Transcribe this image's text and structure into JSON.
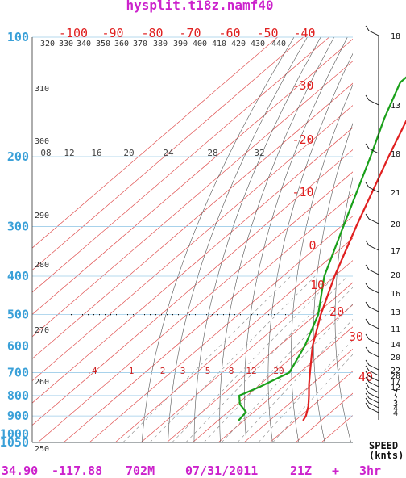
{
  "header": {
    "title": "hysplit.t18z.namf40"
  },
  "footer": {
    "lat": "34.90",
    "lon": "-117.88",
    "elev": "702M",
    "date": "07/31/2011",
    "hour": "21Z",
    "plus": "+",
    "fcst": "3hr"
  },
  "wind_panel": {
    "label_line1": "SPEED",
    "label_line2": "(knts)"
  },
  "colors": {
    "title": "#cc22cc",
    "pressure_axis": "#3aa0d8",
    "temperature": "#e02020",
    "dewpoint": "#1aa01a",
    "isotherm": "#e05050",
    "dry_adiabat": "#555555"
  },
  "chart_data": {
    "type": "line",
    "diagram": "skew-T log-P",
    "y_axis_ticks": [
      "100",
      "200",
      "300",
      "400",
      "500",
      "600",
      "700",
      "800",
      "900",
      "1000",
      "1050"
    ],
    "temperature_ticks": [
      "-100",
      "-90",
      "-80",
      "-70",
      "-60",
      "-50",
      "-40",
      "-30",
      "-20",
      "-10",
      "0",
      "10",
      "20",
      "30",
      "40"
    ],
    "theta_labels": [
      "320",
      "330",
      "340",
      "350",
      "360",
      "370",
      "380",
      "390",
      "400",
      "410",
      "420",
      "430",
      "440",
      "310",
      "300",
      "290",
      "280",
      "270",
      "260",
      "250"
    ],
    "upper_mixing_labels": [
      "08",
      "12",
      "16",
      "20",
      "24",
      "28",
      "32"
    ],
    "lower_mixing_labels": [
      ".4",
      "1",
      "2",
      "3",
      "5",
      "8",
      "12",
      "20"
    ],
    "series": [
      {
        "points": [
          {
            "p": 925,
            "t": 33
          },
          {
            "p": 900,
            "t": 32
          },
          {
            "p": 850,
            "t": 28.5
          },
          {
            "p": 800,
            "t": 24
          },
          {
            "p": 750,
            "t": 19
          },
          {
            "p": 700,
            "t": 14
          },
          {
            "p": 600,
            "t": 3
          },
          {
            "p": 500,
            "t": -8
          },
          {
            "p": 400,
            "t": -20
          },
          {
            "p": 300,
            "t": -34
          },
          {
            "p": 200,
            "t": -53
          },
          {
            "p": 160,
            "t": -63
          },
          {
            "p": 130,
            "t": -70
          },
          {
            "p": 100,
            "t": -75
          }
        ]
      },
      {
        "points": [
          {
            "p": 925,
            "t": 8
          },
          {
            "p": 880,
            "t": 7
          },
          {
            "p": 840,
            "t": 1
          },
          {
            "p": 800,
            "t": -3
          },
          {
            "p": 760,
            "t": 1
          },
          {
            "p": 700,
            "t": 6
          },
          {
            "p": 600,
            "t": 0
          },
          {
            "p": 500,
            "t": -9
          },
          {
            "p": 400,
            "t": -24
          },
          {
            "p": 300,
            "t": -39
          },
          {
            "p": 200,
            "t": -60
          },
          {
            "p": 160,
            "t": -72
          },
          {
            "p": 130,
            "t": -82
          },
          {
            "p": 100,
            "t": -82
          }
        ]
      }
    ],
    "wind_speeds": [
      "18",
      "13",
      "18",
      "21",
      "20",
      "17",
      "20",
      "16",
      "13",
      "11",
      "14",
      "20",
      "22",
      "20",
      "17",
      "12",
      "7",
      "7",
      "3",
      "4",
      "4"
    ]
  }
}
